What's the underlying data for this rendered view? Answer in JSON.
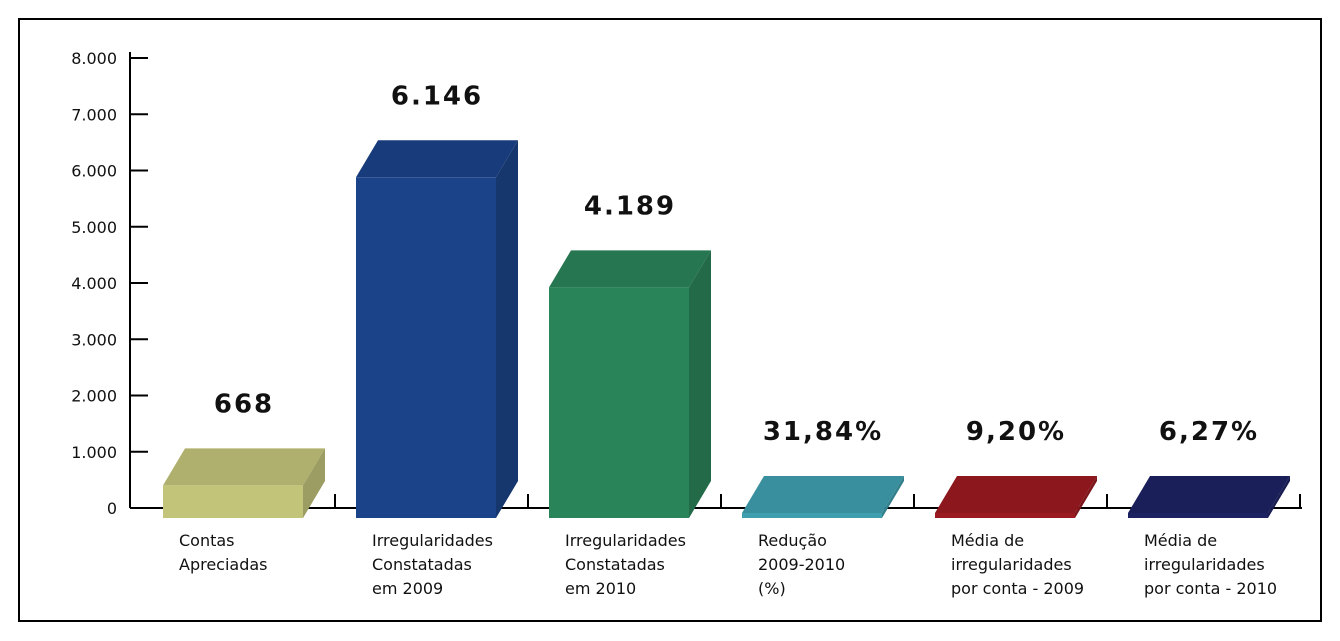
{
  "chart_data": {
    "type": "bar3d",
    "categories": [
      [
        "Contas",
        "Apreciadas"
      ],
      [
        "Irregularidades",
        "Constatadas",
        "em 2009"
      ],
      [
        "Irregularidades",
        "Constatadas",
        "em 2010"
      ],
      [
        "Redução",
        "2009-2010",
        "(%)"
      ],
      [
        "Média de",
        "irregularidades",
        "por conta - 2009"
      ],
      [
        "Média de",
        "irregularidades",
        "por conta - 2010"
      ]
    ],
    "values": [
      668,
      6146,
      4189,
      31.84,
      9.2,
      6.27
    ],
    "value_labels": [
      "668",
      "6.146",
      "4.189",
      "31,84%",
      "9,20%",
      "6,27%"
    ],
    "colors": [
      "#c2c47a",
      "#1b4389",
      "#2a845a",
      "#3f9fae",
      "#9b1a20",
      "#1d2263"
    ],
    "ylim": [
      0,
      8000
    ],
    "yticks": [
      0,
      {
        "value": 1000,
        "label": "1.000"
      },
      {
        "value": 2000,
        "label": "2.000"
      },
      {
        "value": 3000,
        "label": "3.000"
      },
      {
        "value": 4000,
        "label": "4.000"
      },
      {
        "value": 5000,
        "label": "5.000"
      },
      {
        "value": 6000,
        "label": "6.000"
      },
      {
        "value": 7000,
        "label": "7.000"
      },
      {
        "value": 8000,
        "label": "8.000"
      }
    ]
  }
}
